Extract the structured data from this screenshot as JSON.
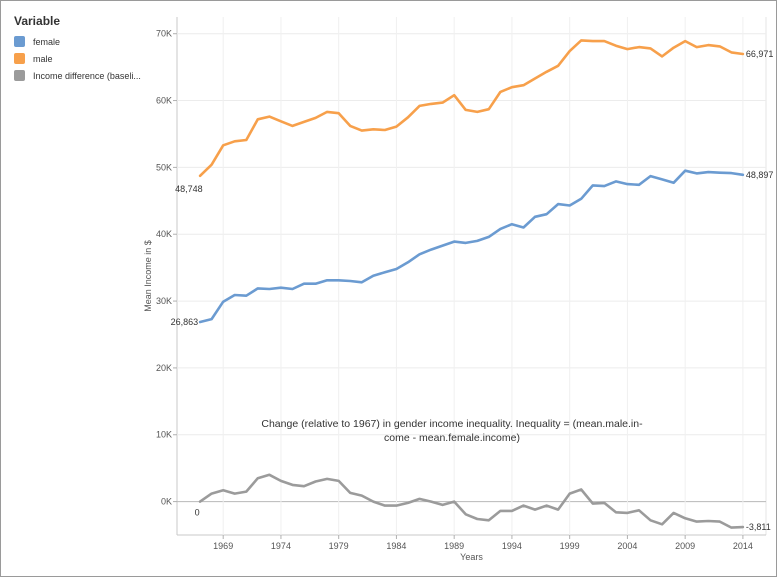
{
  "legend": {
    "title": "Variable",
    "items": [
      {
        "label": "female",
        "color": "#6b9bd1"
      },
      {
        "label": "male",
        "color": "#f7a04b"
      },
      {
        "label": "Income difference (baseli...",
        "color": "#9b9b9b"
      }
    ]
  },
  "chart_data": {
    "type": "line",
    "ylabel": "Mean Income in $",
    "xlabel": "Years",
    "xlim": [
      1965,
      2016
    ],
    "ylim": [
      -5000,
      72500
    ],
    "x_ticks": [
      1969,
      1974,
      1979,
      1984,
      1989,
      1994,
      1999,
      2004,
      2009,
      2014
    ],
    "y_ticks": [
      0,
      10000,
      20000,
      30000,
      40000,
      50000,
      60000,
      70000
    ],
    "y_tick_labels": [
      "0K",
      "10K",
      "20K",
      "30K",
      "40K",
      "50K",
      "60K",
      "70K"
    ],
    "grid": true,
    "annotation": "Change (relative to 1967) in gender income inequality. Inequality = (mean.male.in- come - mean.female.income)",
    "x": [
      1967,
      1968,
      1969,
      1970,
      1971,
      1972,
      1973,
      1974,
      1975,
      1976,
      1977,
      1978,
      1979,
      1980,
      1981,
      1982,
      1983,
      1984,
      1985,
      1986,
      1987,
      1988,
      1989,
      1990,
      1991,
      1992,
      1993,
      1994,
      1995,
      1996,
      1997,
      1998,
      1999,
      2000,
      2001,
      2002,
      2003,
      2004,
      2005,
      2006,
      2007,
      2008,
      2009,
      2010,
      2011,
      2012,
      2013,
      2014
    ],
    "series": [
      {
        "name": "female",
        "color": "#6b9bd1",
        "start_label": "26,863",
        "end_label": "48,897",
        "values": [
          26863,
          27300,
          29900,
          30900,
          30800,
          31900,
          31800,
          32000,
          31800,
          32600,
          32600,
          33100,
          33100,
          33000,
          32800,
          33800,
          34300,
          34800,
          35800,
          37000,
          37700,
          38300,
          38900,
          38700,
          39000,
          39600,
          40800,
          41500,
          41000,
          42600,
          43000,
          44500,
          44300,
          45300,
          47300,
          47200,
          47900,
          47500,
          47400,
          48700,
          48200,
          47700,
          49500,
          49100,
          49300,
          49200,
          49150,
          48897
        ]
      },
      {
        "name": "male",
        "color": "#f7a04b",
        "start_label": "48,748",
        "end_label": "66,971",
        "values": [
          48748,
          50400,
          53300,
          53900,
          54100,
          57200,
          57600,
          56900,
          56200,
          56800,
          57400,
          58300,
          58100,
          56200,
          55500,
          55700,
          55600,
          56100,
          57500,
          59200,
          59500,
          59700,
          60800,
          58600,
          58300,
          58700,
          61300,
          62000,
          62300,
          63300,
          64300,
          65200,
          67400,
          69000,
          68900,
          68900,
          68200,
          67700,
          68000,
          67800,
          66600,
          67900,
          68900,
          68000,
          68300,
          68100,
          67200,
          66971
        ]
      },
      {
        "name": "Income difference (baseli...",
        "color": "#9b9b9b",
        "start_label": "0",
        "end_label": "-3,811",
        "values": [
          0,
          1200,
          1700,
          1200,
          1500,
          3500,
          4000,
          3100,
          2500,
          2300,
          3000,
          3400,
          3100,
          1300,
          900,
          0,
          -600,
          -600,
          -200,
          400,
          0,
          -500,
          0,
          -1900,
          -2600,
          -2800,
          -1400,
          -1400,
          -600,
          -1200,
          -600,
          -1200,
          1200,
          1800,
          -300,
          -200,
          -1600,
          -1700,
          -1300,
          -2800,
          -3400,
          -1700,
          -2500,
          -3000,
          -2900,
          -3000,
          -3900,
          -3811
        ]
      }
    ]
  }
}
